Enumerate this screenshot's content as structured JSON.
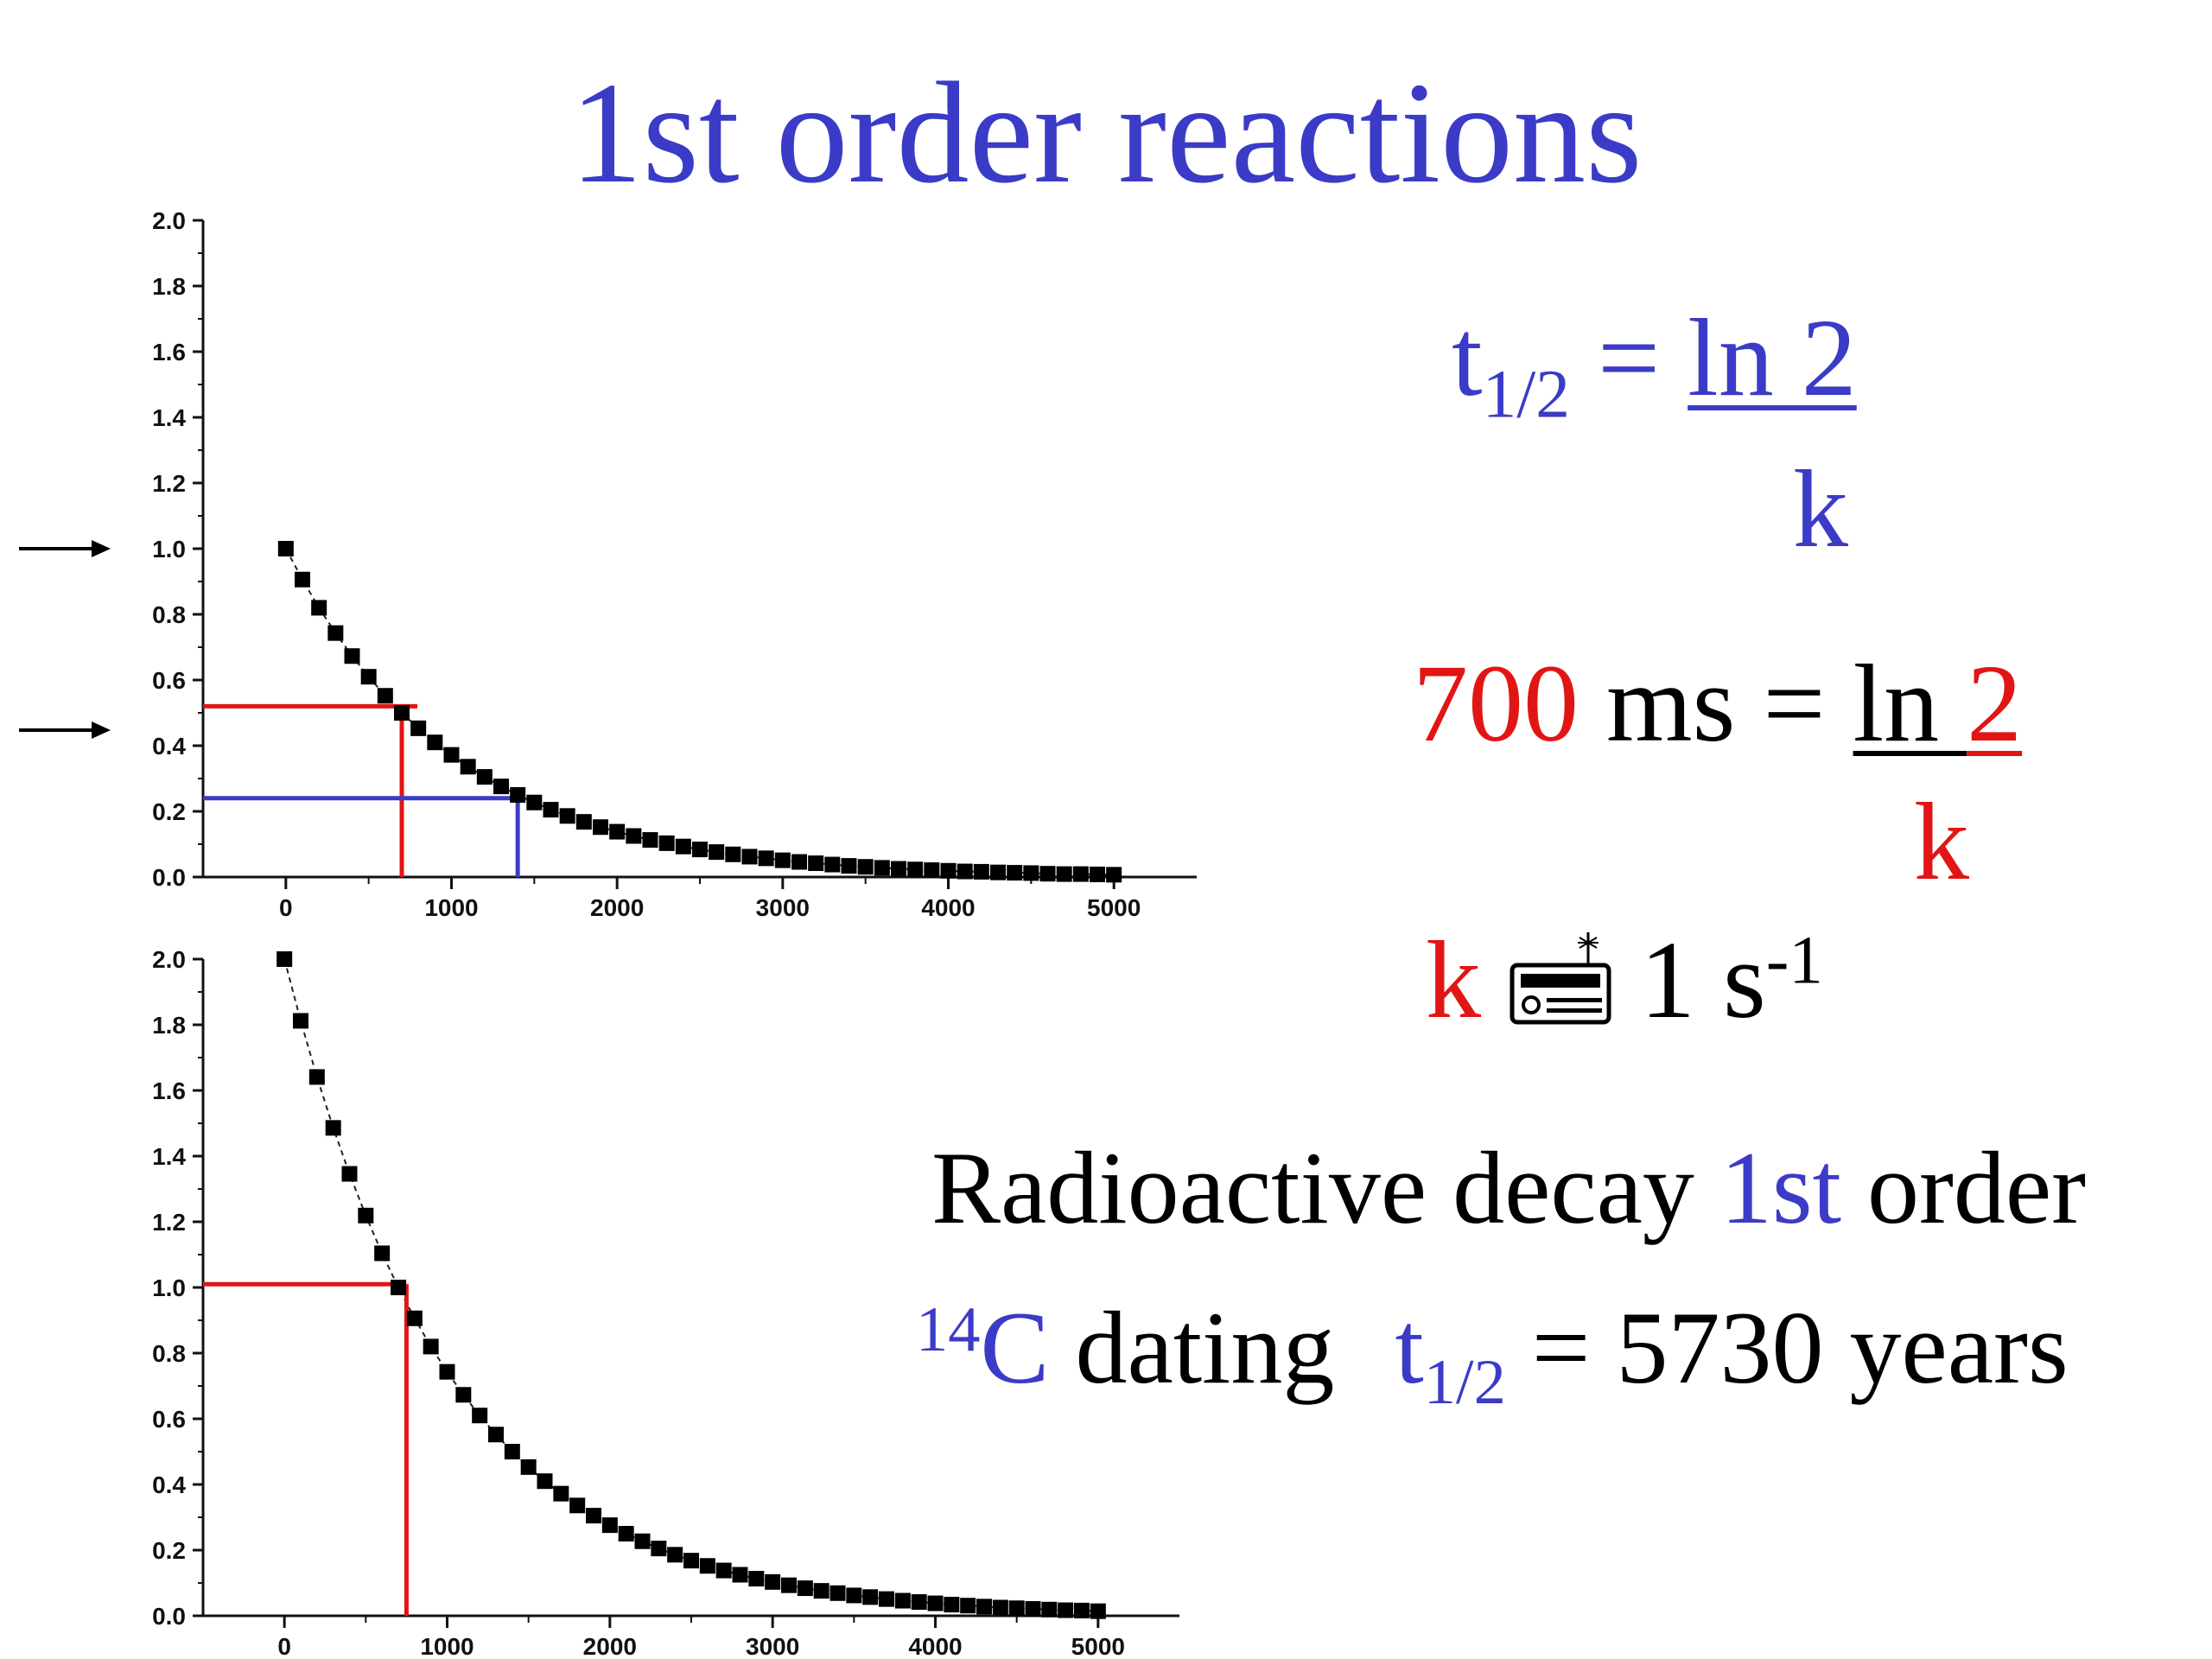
{
  "title": "1st order reactions",
  "colors": {
    "blue": "#3b3bc8",
    "red": "#e21515",
    "black": "#000000"
  },
  "equations": {
    "halflife": {
      "t": "t",
      "sub": "1/2",
      "eq": " = ",
      "num": "ln 2",
      "den": "k"
    },
    "ms": {
      "value": "700",
      "unit": " ms = ",
      "num_black": "ln ",
      "num_red": "2",
      "den": "k"
    },
    "k_approx": {
      "k": "k",
      "icon": "radio-icon",
      "value": " 1 s",
      "sup": "-1"
    },
    "radioactive": {
      "part1": "Radioactive decay ",
      "part2": "1st",
      "part3": " order"
    },
    "carbon": {
      "sup": "14",
      "c": "C",
      "dating": " dating ",
      "t": "t",
      "sub": "1/2",
      "rest": " = 5730 years"
    }
  },
  "chart_data": [
    {
      "type": "scatter",
      "title": "",
      "xlabel": "",
      "ylabel": "",
      "xlim": [
        -500,
        5500
      ],
      "ylim": [
        0,
        2.0
      ],
      "x_ticks": [
        0,
        1000,
        2000,
        3000,
        4000,
        5000
      ],
      "x_tick_labels": [
        "0",
        "1000",
        "2000",
        "3000",
        "4000",
        "5000"
      ],
      "y_ticks": [
        0.0,
        0.2,
        0.4,
        0.6,
        0.8,
        1.0,
        1.2,
        1.4,
        1.6,
        1.8,
        2.0
      ],
      "y_tick_labels": [
        "0.0",
        "0.2",
        "0.4",
        "0.6",
        "0.8",
        "1.0",
        "1.2",
        "1.4",
        "1.6",
        "1.8",
        "2.0"
      ],
      "series": [
        {
          "x": [
            0,
            100,
            200,
            300,
            400,
            500,
            600,
            700,
            800,
            900,
            1000,
            1100,
            1200,
            1300,
            1400,
            1500,
            1600,
            1700,
            1800,
            1900,
            2000,
            2100,
            2200,
            2300,
            2400,
            2500,
            2600,
            2700,
            2800,
            2900,
            3000,
            3100,
            3200,
            3300,
            3400,
            3500,
            3600,
            3700,
            3800,
            3900,
            4000,
            4100,
            4200,
            4300,
            4400,
            4500,
            4600,
            4700,
            4800,
            4900,
            5000
          ],
          "y": [
            1.0,
            0.906,
            0.82,
            0.743,
            0.673,
            0.61,
            0.552,
            0.5,
            0.453,
            0.41,
            0.372,
            0.336,
            0.305,
            0.276,
            0.25,
            0.227,
            0.205,
            0.186,
            0.168,
            0.152,
            0.138,
            0.125,
            0.113,
            0.103,
            0.093,
            0.084,
            0.076,
            0.069,
            0.062,
            0.057,
            0.051,
            0.046,
            0.042,
            0.038,
            0.034,
            0.031,
            0.028,
            0.025,
            0.023,
            0.021,
            0.019,
            0.017,
            0.016,
            0.014,
            0.013,
            0.012,
            0.01,
            0.009,
            0.009,
            0.008,
            0.007
          ]
        }
      ],
      "annotations": [
        {
          "type": "marker-arrow",
          "y": 1.0
        },
        {
          "type": "marker-arrow",
          "y": 0.5
        },
        {
          "type": "halflife-guide",
          "color": "red",
          "x": 700,
          "y": 0.52
        },
        {
          "type": "halflife-guide",
          "color": "blue",
          "x": 1400,
          "y": 0.24
        }
      ]
    },
    {
      "type": "scatter",
      "title": "",
      "xlabel": "",
      "ylabel": "",
      "xlim": [
        -500,
        5500
      ],
      "ylim": [
        0,
        2.0
      ],
      "x_ticks": [
        0,
        1000,
        2000,
        3000,
        4000,
        5000
      ],
      "x_tick_labels": [
        "0",
        "1000",
        "2000",
        "3000",
        "4000",
        "5000"
      ],
      "y_ticks": [
        0.0,
        0.2,
        0.4,
        0.6,
        0.8,
        1.0,
        1.2,
        1.4,
        1.6,
        1.8,
        2.0
      ],
      "y_tick_labels": [
        "0.0",
        "0.2",
        "0.4",
        "0.6",
        "0.8",
        "1.0",
        "1.2",
        "1.4",
        "1.6",
        "1.8",
        "2.0"
      ],
      "series": [
        {
          "x": [
            0,
            100,
            200,
            300,
            400,
            500,
            600,
            700,
            800,
            900,
            1000,
            1100,
            1200,
            1300,
            1400,
            1500,
            1600,
            1700,
            1800,
            1900,
            2000,
            2100,
            2200,
            2300,
            2400,
            2500,
            2600,
            2700,
            2800,
            2900,
            3000,
            3100,
            3200,
            3300,
            3400,
            3500,
            3600,
            3700,
            3800,
            3900,
            4000,
            4100,
            4200,
            4300,
            4400,
            4500,
            4600,
            4700,
            4800,
            4900,
            5000
          ],
          "y": [
            2.0,
            1.812,
            1.641,
            1.486,
            1.346,
            1.219,
            1.104,
            1.0,
            0.906,
            0.82,
            0.743,
            0.673,
            0.61,
            0.552,
            0.5,
            0.453,
            0.41,
            0.372,
            0.336,
            0.305,
            0.276,
            0.25,
            0.227,
            0.205,
            0.186,
            0.168,
            0.152,
            0.138,
            0.125,
            0.113,
            0.103,
            0.093,
            0.084,
            0.076,
            0.069,
            0.062,
            0.057,
            0.051,
            0.046,
            0.042,
            0.038,
            0.034,
            0.031,
            0.028,
            0.025,
            0.023,
            0.021,
            0.019,
            0.017,
            0.016,
            0.014
          ]
        }
      ],
      "annotations": [
        {
          "type": "halflife-guide",
          "color": "red",
          "x": 750,
          "y": 1.01
        }
      ]
    }
  ]
}
